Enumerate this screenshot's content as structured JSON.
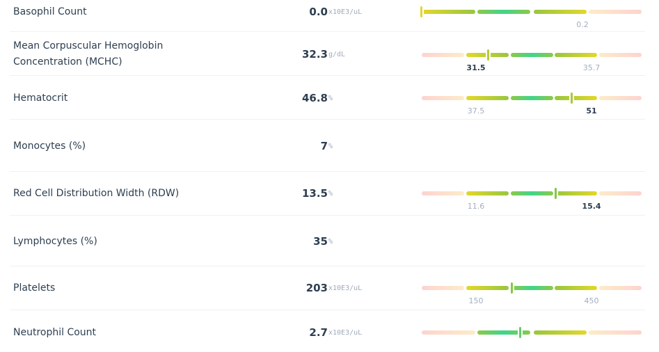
{
  "colors": {
    "low_high": "#fdd3cf",
    "borderline": "#e3d72a",
    "normal": "#3fd58d",
    "text": "#2d3e50",
    "muted": "#a3aec0"
  },
  "results": [
    {
      "name": "Basophil Count",
      "value": "0.0",
      "unit": "x10E3/uL",
      "range": {
        "high": "0.2"
      },
      "emphasis": "none"
    },
    {
      "name": "Mean Corpuscular Hemoglobin Concentration (MCHC)",
      "value": "32.3",
      "unit": "g/dL",
      "range": {
        "low": "31.5",
        "high": "35.7"
      },
      "emphasis": "low"
    },
    {
      "name": "Hematocrit",
      "value": "46.8",
      "unit": "%",
      "range": {
        "low": "37.5",
        "high": "51"
      },
      "emphasis": "high"
    },
    {
      "name": "Monocytes (%)",
      "value": "7",
      "unit": "%"
    },
    {
      "name": "Red Cell Distribution Width (RDW)",
      "value": "13.5",
      "unit": "%",
      "range": {
        "low": "11.6",
        "high": "15.4"
      },
      "emphasis": "high"
    },
    {
      "name": "Lymphocytes (%)",
      "value": "35",
      "unit": "%"
    },
    {
      "name": "Platelets",
      "value": "203",
      "unit": "x10E3/uL",
      "range": {
        "low": "150",
        "high": "450"
      },
      "emphasis": "none"
    },
    {
      "name": "Neutrophil Count",
      "value": "2.7",
      "unit": "x10E3/uL",
      "range": {},
      "emphasis": "none"
    }
  ]
}
